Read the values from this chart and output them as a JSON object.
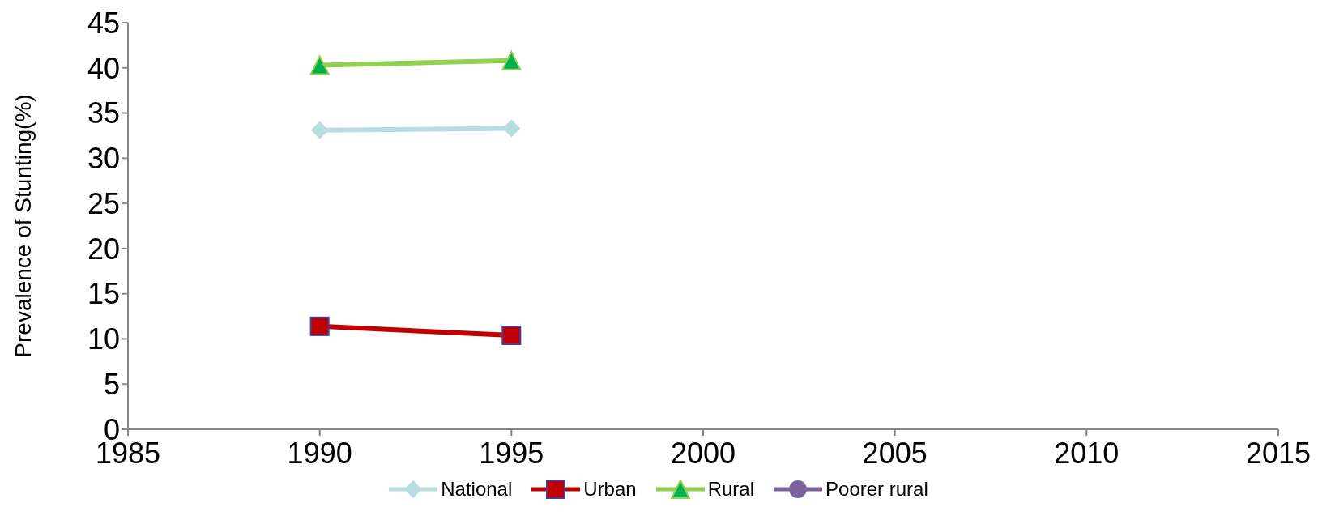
{
  "chart_data": {
    "type": "line",
    "ylabel": "Prevalence of Stunting(%)",
    "x": [
      1990,
      1995
    ],
    "series": [
      {
        "name": "National",
        "color": "#b7dde1",
        "marker": "diamond",
        "values": [
          33.1,
          33.3
        ]
      },
      {
        "name": "Urban",
        "color": "#c00000",
        "marker": "square",
        "values": [
          11.4,
          10.4
        ]
      },
      {
        "name": "Rural",
        "color": "#92d050",
        "marker": "triangle",
        "values": [
          40.3,
          40.8
        ]
      },
      {
        "name": "Poorer rural",
        "color": "#7d60a0",
        "marker": "circle",
        "values": [
          null,
          null
        ]
      }
    ],
    "xlim": [
      1985,
      2015
    ],
    "xticks": [
      1985,
      1990,
      1995,
      2000,
      2005,
      2010,
      2015
    ],
    "ylim": [
      0,
      45
    ],
    "yticks": [
      0,
      5,
      10,
      15,
      20,
      25,
      30,
      35,
      40,
      45
    ],
    "grid": false,
    "legend": "bottom",
    "line_style": "solid"
  }
}
